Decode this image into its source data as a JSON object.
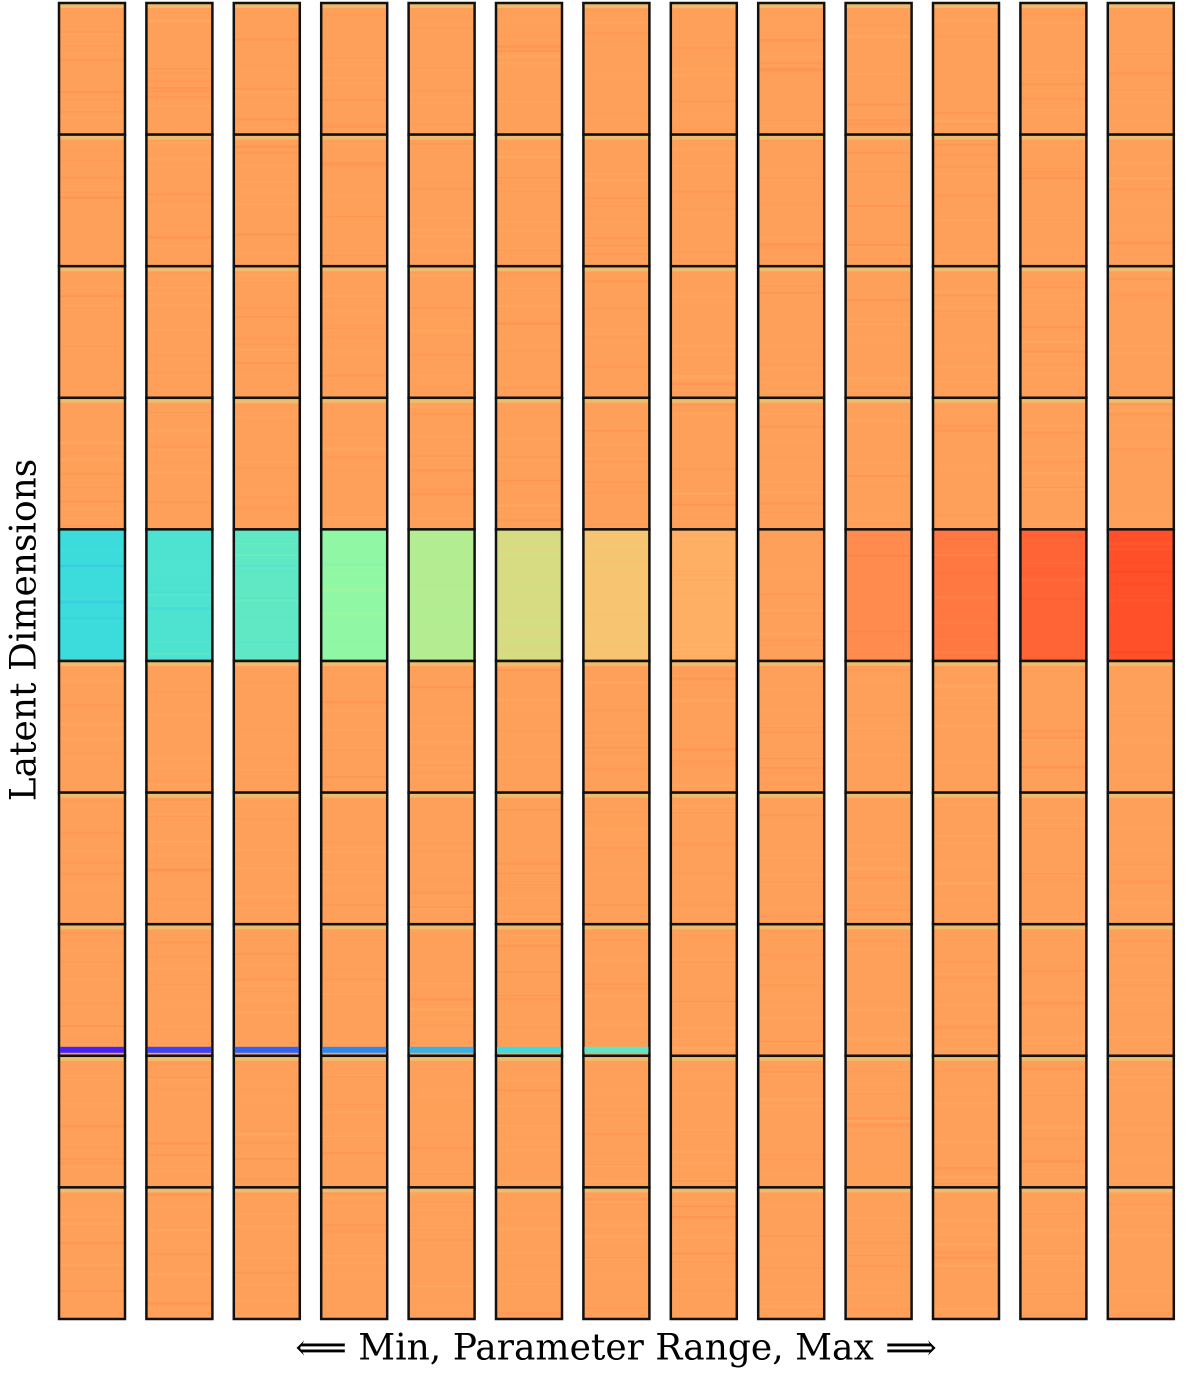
{
  "chart_data": {
    "type": "heatmap",
    "title": "",
    "xlabel": "⟸ Min, Parameter Range, Max ⟹",
    "ylabel": "Latent Dimensions",
    "colormap": "rainbow",
    "n_columns": 13,
    "n_dimensions": 10,
    "series": [
      {
        "dimension": 1,
        "values": [
          0.8,
          0.8,
          0.8,
          0.8,
          0.8,
          0.8,
          0.8,
          0.8,
          0.8,
          0.8,
          0.8,
          0.8,
          0.8
        ]
      },
      {
        "dimension": 2,
        "values": [
          0.8,
          0.8,
          0.8,
          0.8,
          0.8,
          0.8,
          0.8,
          0.8,
          0.8,
          0.8,
          0.8,
          0.8,
          0.8
        ]
      },
      {
        "dimension": 3,
        "values": [
          0.8,
          0.8,
          0.8,
          0.8,
          0.8,
          0.8,
          0.8,
          0.8,
          0.8,
          0.8,
          0.8,
          0.8,
          0.8
        ]
      },
      {
        "dimension": 4,
        "values": [
          0.8,
          0.8,
          0.8,
          0.8,
          0.8,
          0.8,
          0.8,
          0.8,
          0.8,
          0.8,
          0.8,
          0.8,
          0.8
        ]
      },
      {
        "dimension": 5,
        "values": [
          0.3,
          0.33,
          0.36,
          0.44,
          0.52,
          0.6,
          0.68,
          0.75,
          0.8,
          0.84,
          0.88,
          0.92,
          0.96
        ]
      },
      {
        "dimension": 6,
        "values": [
          0.8,
          0.8,
          0.8,
          0.8,
          0.8,
          0.8,
          0.8,
          0.8,
          0.8,
          0.8,
          0.8,
          0.8,
          0.8
        ]
      },
      {
        "dimension": 7,
        "values": [
          0.8,
          0.8,
          0.8,
          0.8,
          0.8,
          0.8,
          0.8,
          0.8,
          0.8,
          0.8,
          0.8,
          0.8,
          0.8
        ]
      },
      {
        "dimension": 8,
        "values": [
          0.8,
          0.8,
          0.8,
          0.8,
          0.8,
          0.8,
          0.8,
          0.8,
          0.8,
          0.8,
          0.8,
          0.8,
          0.8
        ]
      },
      {
        "dimension": 9,
        "values": [
          0.8,
          0.8,
          0.8,
          0.8,
          0.8,
          0.8,
          0.8,
          0.8,
          0.8,
          0.8,
          0.8,
          0.8,
          0.8
        ]
      },
      {
        "dimension": 10,
        "values": [
          0.8,
          0.8,
          0.8,
          0.8,
          0.8,
          0.8,
          0.8,
          0.8,
          0.8,
          0.8,
          0.8,
          0.8,
          0.8
        ]
      }
    ],
    "legend": "none",
    "grid": false
  }
}
